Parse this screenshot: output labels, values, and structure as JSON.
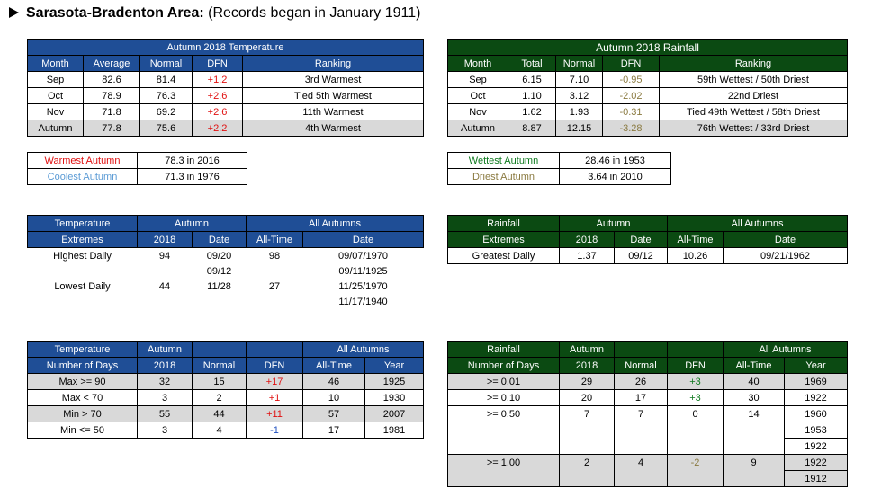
{
  "title": {
    "bold": "Sarasota-Bradenton Area:",
    "rest": " (Records began in January 1911)"
  },
  "temp": {
    "header": "Autumn 2018 Temperature",
    "cols": [
      "Month",
      "Average",
      "Normal",
      "DFN",
      "Ranking"
    ],
    "rows": [
      [
        "Sep",
        "82.6",
        "81.4",
        "+1.2",
        "3rd Warmest"
      ],
      [
        "Oct",
        "78.9",
        "76.3",
        "+2.6",
        "Tied 5th Warmest"
      ],
      [
        "Nov",
        "71.8",
        "69.2",
        "+2.6",
        "11th Warmest"
      ],
      [
        "Autumn",
        "77.8",
        "75.6",
        "+2.2",
        "4th Warmest"
      ]
    ]
  },
  "rain": {
    "header": "Autumn 2018 Rainfall",
    "cols": [
      "Month",
      "Total",
      "Normal",
      "DFN",
      "Ranking"
    ],
    "rows": [
      [
        "Sep",
        "6.15",
        "7.10",
        "-0.95",
        "59th Wettest / 50th Driest"
      ],
      [
        "Oct",
        "1.10",
        "3.12",
        "-2.02",
        "22nd Driest"
      ],
      [
        "Nov",
        "1.62",
        "1.93",
        "-0.31",
        "Tied 49th Wettest / 58th Driest"
      ],
      [
        "Autumn",
        "8.87",
        "12.15",
        "-3.28",
        "76th Wettest / 33rd Driest"
      ]
    ]
  },
  "temp_records": [
    [
      "Warmest Autumn",
      "78.3 in 2016"
    ],
    [
      "Coolest Autumn",
      "71.3 in 1976"
    ]
  ],
  "rain_records": [
    [
      "Wettest Autumn",
      "28.46 in 1953"
    ],
    [
      "Driest Autumn",
      "3.64 in 2010"
    ]
  ],
  "temp_ext": {
    "h1": [
      "Temperature",
      "Autumn",
      "All Autumns"
    ],
    "h2": [
      "Extremes",
      "2018",
      "Date",
      "All-Time",
      "Date"
    ],
    "rows": [
      [
        "Highest Daily",
        "94",
        "09/20",
        "98",
        "09/07/1970"
      ],
      [
        "",
        "",
        "09/12",
        "",
        "09/11/1925"
      ],
      [
        "Lowest Daily",
        "44",
        "11/28",
        "27",
        "11/25/1970"
      ],
      [
        "",
        "",
        "",
        "",
        "11/17/1940"
      ]
    ]
  },
  "rain_ext": {
    "h1": [
      "Rainfall",
      "Autumn",
      "All Autumns"
    ],
    "h2": [
      "Extremes",
      "2018",
      "Date",
      "All-Time",
      "Date"
    ],
    "rows": [
      [
        "Greatest Daily",
        "1.37",
        "09/12",
        "10.26",
        "09/21/1962"
      ]
    ]
  },
  "temp_days": {
    "h1": [
      "Temperature",
      "Autumn",
      "All Autumns"
    ],
    "h2": [
      "Number of Days",
      "2018",
      "Normal",
      "DFN",
      "All-Time",
      "Year"
    ],
    "rows": [
      [
        "Max >= 90",
        "32",
        "15",
        "+17",
        "46",
        "1925"
      ],
      [
        "Max < 70",
        "3",
        "2",
        "+1",
        "10",
        "1930"
      ],
      [
        "Min > 70",
        "55",
        "44",
        "+11",
        "57",
        "2007"
      ],
      [
        "Min <= 50",
        "3",
        "4",
        "-1",
        "17",
        "1981"
      ]
    ]
  },
  "rain_days": {
    "h1": [
      "Rainfall",
      "Autumn",
      "All Autumns"
    ],
    "h2": [
      "Number of Days",
      "2018",
      "Normal",
      "DFN",
      "All-Time",
      "Year"
    ],
    "rows": [
      [
        ">= 0.01",
        "29",
        "26",
        "+3",
        "40",
        "1969"
      ],
      [
        ">= 0.10",
        "20",
        "17",
        "+3",
        "30",
        "1922"
      ],
      [
        ">= 0.50",
        "7",
        "7",
        "0",
        "14",
        "1960"
      ],
      [
        "",
        "",
        "",
        "",
        "",
        "1953"
      ],
      [
        "",
        "",
        "",
        "",
        "",
        "1922"
      ],
      [
        ">= 1.00",
        "2",
        "4",
        "-2",
        "9",
        "1922"
      ],
      [
        "",
        "",
        "",
        "",
        "",
        "1912"
      ]
    ]
  }
}
